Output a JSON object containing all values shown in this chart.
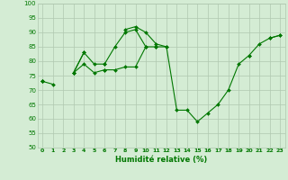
{
  "xlabel": "Humidité relative (%)",
  "xlim": [
    -0.5,
    23.5
  ],
  "ylim": [
    50,
    100
  ],
  "yticks": [
    50,
    55,
    60,
    65,
    70,
    75,
    80,
    85,
    90,
    95,
    100
  ],
  "xticks": [
    0,
    1,
    2,
    3,
    4,
    5,
    6,
    7,
    8,
    9,
    10,
    11,
    12,
    13,
    14,
    15,
    16,
    17,
    18,
    19,
    20,
    21,
    22,
    23
  ],
  "bg_color": "#d4ecd4",
  "grid_color": "#b0c8b0",
  "line_color": "#007700",
  "lines": [
    [
      73,
      72,
      null,
      76,
      83,
      null,
      79,
      null,
      91,
      92,
      90,
      86,
      85,
      63,
      63,
      59,
      62,
      65,
      70,
      79,
      82,
      86,
      88,
      89
    ],
    [
      73,
      null,
      null,
      76,
      83,
      79,
      79,
      85,
      90,
      91,
      85,
      null,
      null,
      null,
      null,
      null,
      null,
      null,
      null,
      null,
      null,
      null,
      null,
      null
    ],
    [
      73,
      null,
      null,
      76,
      79,
      76,
      77,
      77,
      78,
      78,
      85,
      85,
      85,
      null,
      null,
      null,
      null,
      null,
      null,
      null,
      null,
      null,
      null,
      null
    ],
    [
      73,
      null,
      null,
      null,
      null,
      null,
      77,
      null,
      null,
      null,
      null,
      85,
      null,
      null,
      null,
      null,
      null,
      null,
      null,
      null,
      82,
      null,
      88,
      89
    ]
  ]
}
